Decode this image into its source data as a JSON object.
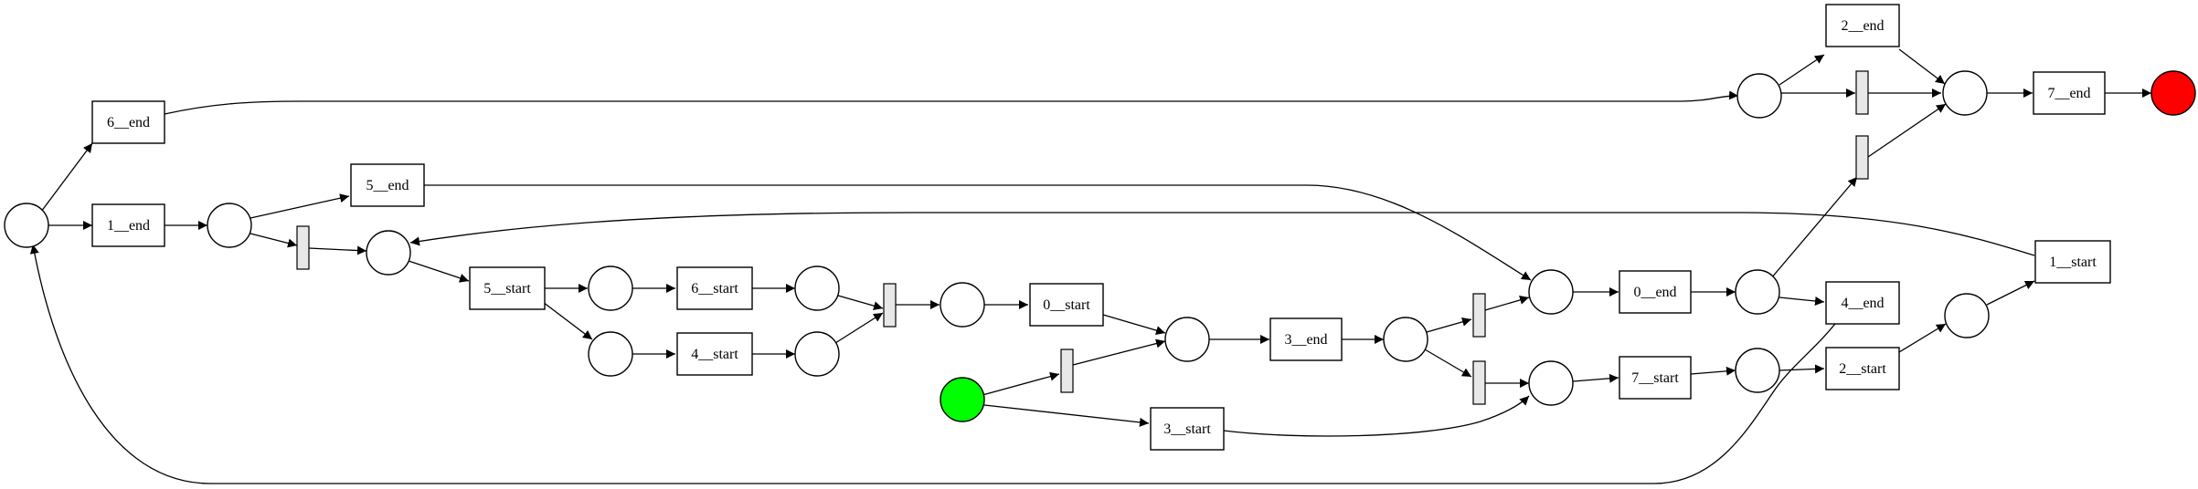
{
  "diagram": {
    "type": "petri-net",
    "colors": {
      "start_place": "#00ff00",
      "end_place": "#ff0000",
      "silent_transition": "#e8e8e8"
    },
    "transitions": [
      {
        "id": "t6end",
        "label": "6__end"
      },
      {
        "id": "t1end",
        "label": "1__end"
      },
      {
        "id": "t5end",
        "label": "5__end"
      },
      {
        "id": "t5start",
        "label": "5__start"
      },
      {
        "id": "t6start",
        "label": "6__start"
      },
      {
        "id": "t4start",
        "label": "4__start"
      },
      {
        "id": "t0start",
        "label": "0__start"
      },
      {
        "id": "t3start",
        "label": "3__start"
      },
      {
        "id": "t3end",
        "label": "3__end"
      },
      {
        "id": "t0end",
        "label": "0__end"
      },
      {
        "id": "t7start",
        "label": "7__start"
      },
      {
        "id": "t2end",
        "label": "2__end"
      },
      {
        "id": "t4end",
        "label": "4__end"
      },
      {
        "id": "t2start",
        "label": "2__start"
      },
      {
        "id": "t1start",
        "label": "1__start"
      },
      {
        "id": "t7end",
        "label": "7__end"
      }
    ]
  }
}
